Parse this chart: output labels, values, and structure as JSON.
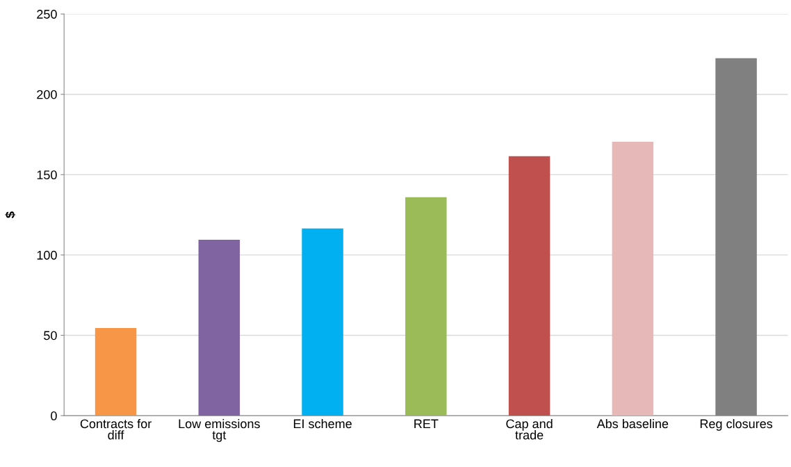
{
  "chart_data": {
    "type": "bar",
    "ylabel": "$",
    "categories": [
      "Contracts for\ndiff",
      "Low emissions\ntgt",
      "EI scheme",
      "RET",
      "Cap and\ntrade",
      "Abs baseline",
      "Reg closures"
    ],
    "values": [
      54.5,
      109.5,
      116.5,
      136,
      161.5,
      170.5,
      222.5
    ],
    "colors": [
      "#f79646",
      "#8064a2",
      "#00b0f0",
      "#9bbb59",
      "#c0504d",
      "#e6b9b8",
      "#808080"
    ],
    "ylim": [
      0,
      250
    ],
    "yticks": [
      0,
      50,
      100,
      150,
      200,
      250
    ],
    "grid": "y",
    "legend": false
  }
}
